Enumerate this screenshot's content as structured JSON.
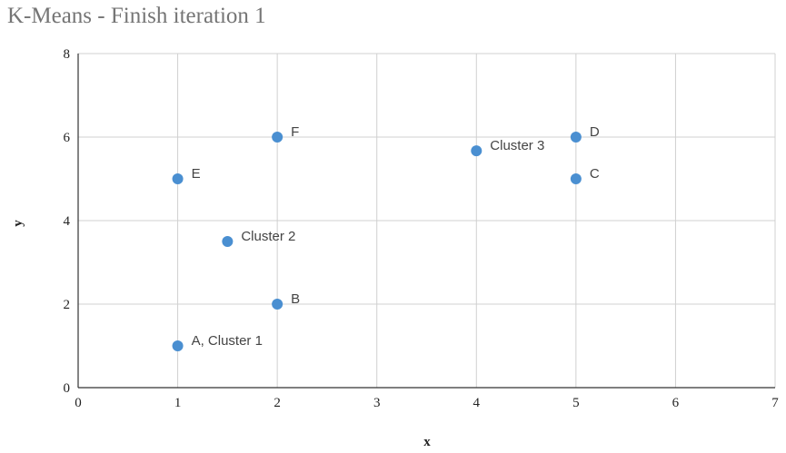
{
  "chart_data": {
    "type": "scatter",
    "title": "K-Means - Finish iteration 1",
    "xlabel": "x",
    "ylabel": "y",
    "xlim": [
      0,
      7
    ],
    "ylim": [
      0,
      8
    ],
    "x_ticks": [
      "0",
      "1",
      "2",
      "3",
      "4",
      "5",
      "6",
      "7"
    ],
    "y_ticks": [
      "0",
      "2",
      "4",
      "6",
      "8"
    ],
    "grid": true,
    "marker_color": "#4a8fd1",
    "points": [
      {
        "x": 1,
        "y": 1,
        "label": "A, Cluster 1"
      },
      {
        "x": 2,
        "y": 2,
        "label": "B"
      },
      {
        "x": 5,
        "y": 5,
        "label": "C"
      },
      {
        "x": 5,
        "y": 6,
        "label": "D"
      },
      {
        "x": 1,
        "y": 5,
        "label": "E"
      },
      {
        "x": 2,
        "y": 6,
        "label": "F"
      },
      {
        "x": 1.5,
        "y": 3.5,
        "label": "Cluster 2"
      },
      {
        "x": 4,
        "y": 5.67,
        "label": "Cluster 3"
      }
    ]
  }
}
